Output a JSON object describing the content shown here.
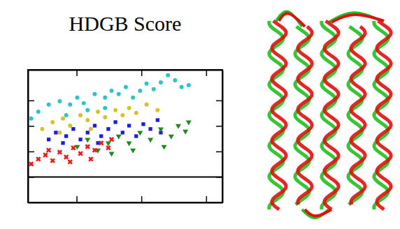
{
  "chart_data": {
    "type": "scatter",
    "title": "HDGB Score",
    "xlim": [
      0,
      3
    ],
    "xticks": [
      0.75,
      1.75,
      2.75
    ],
    "ylim": [
      0,
      5.2
    ],
    "yticks": [
      1,
      2,
      3,
      4
    ],
    "tick_labels": false,
    "grid": false,
    "series": [
      {
        "color": "#2cc4c9",
        "marker": "circle",
        "x": [
          0.05,
          0.16,
          0.32,
          0.49,
          0.65,
          0.76,
          0.86,
          1.03,
          1.19,
          1.29,
          1.4,
          1.51,
          1.62,
          1.73,
          1.83,
          1.94,
          2.05,
          2.16,
          2.27,
          2.37,
          2.48,
          1.19,
          0.92,
          0.59
        ],
        "values": [
          3.29,
          3.56,
          3.84,
          3.97,
          3.84,
          4.11,
          3.89,
          4.25,
          4.11,
          4.38,
          4.25,
          4.52,
          4.11,
          4.38,
          4.66,
          4.44,
          4.71,
          4.99,
          4.79,
          4.52,
          4.6,
          3.7,
          3.62,
          3.42
        ]
      },
      {
        "color": "#d4c42a",
        "marker": "circle",
        "x": [
          0.22,
          0.38,
          0.54,
          0.65,
          0.81,
          0.92,
          1.08,
          1.19,
          1.35,
          1.46,
          1.56,
          1.67,
          1.83,
          2.0,
          0.49,
          0.97
        ],
        "values": [
          2.88,
          3.15,
          3.29,
          3.01,
          3.42,
          3.23,
          3.56,
          3.34,
          3.62,
          3.42,
          3.7,
          3.51,
          3.84,
          3.62,
          2.74,
          2.88
        ]
      },
      {
        "color": "#1c1ce0",
        "marker": "square",
        "x": [
          0.32,
          0.43,
          0.59,
          0.7,
          0.81,
          0.92,
          1.03,
          1.13,
          1.24,
          1.35,
          1.46,
          1.56,
          1.67,
          1.78,
          1.89,
          2.0,
          2.05,
          1.08,
          0.54
        ],
        "values": [
          2.47,
          2.74,
          2.6,
          2.88,
          2.47,
          2.74,
          3.01,
          2.6,
          2.88,
          3.15,
          2.74,
          3.01,
          2.6,
          3.07,
          2.88,
          3.23,
          2.74,
          2.33,
          2.33
        ]
      },
      {
        "color": "#1f8a1f",
        "marker": "triangle-down",
        "x": [
          0.76,
          0.92,
          1.08,
          1.24,
          1.4,
          1.56,
          1.73,
          1.89,
          2.05,
          2.21,
          2.32,
          2.43,
          2.48,
          1.29,
          1.62,
          2.1
        ],
        "values": [
          2.19,
          2.47,
          2.05,
          2.33,
          2.6,
          2.33,
          2.74,
          2.47,
          2.88,
          2.6,
          3.01,
          2.79,
          3.15,
          1.92,
          2.05,
          2.19
        ]
      },
      {
        "color": "#e81c1c",
        "marker": "cross",
        "x": [
          0.05,
          0.16,
          0.27,
          0.38,
          0.49,
          0.59,
          0.7,
          0.81,
          0.92,
          1.03,
          1.13,
          1.24,
          1.29,
          0.32,
          0.65,
          0.97
        ],
        "values": [
          1.51,
          1.7,
          1.86,
          1.64,
          1.97,
          1.78,
          2.14,
          1.92,
          2.19,
          2.05,
          2.33,
          2.14,
          2.47,
          2.05,
          1.59,
          1.7
        ]
      }
    ]
  }
}
